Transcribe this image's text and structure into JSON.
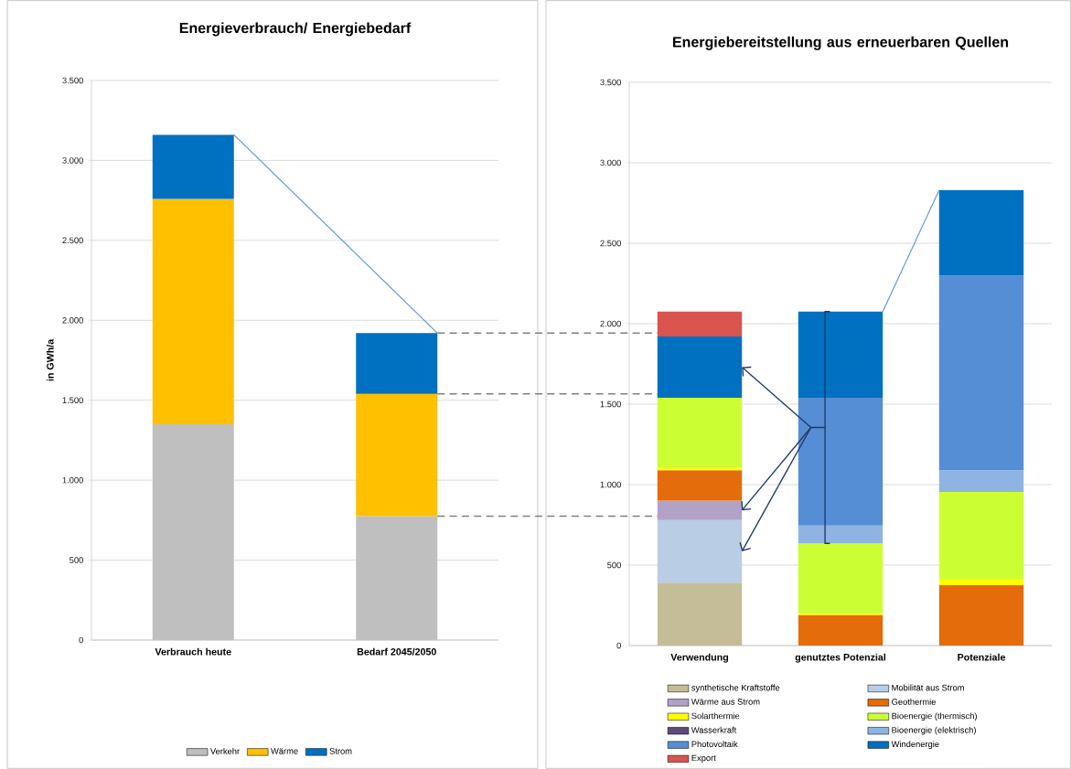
{
  "chart_data": [
    {
      "type": "bar",
      "stacked": true,
      "title": "Energieverbrauch/ Energiebedarf",
      "ylabel": "in GWh/a",
      "categories": [
        "Verbrauch heute",
        "Bedarf 2045/2050"
      ],
      "series": [
        {
          "name": "Verkehr",
          "color": "#bfbfbf",
          "values": [
            1350,
            775
          ]
        },
        {
          "name": "Wärme",
          "color": "#ffc000",
          "values": [
            1410,
            765
          ]
        },
        {
          "name": "Strom",
          "color": "#0070c0",
          "values": [
            400,
            380
          ]
        }
      ],
      "ylim": [
        0,
        3500
      ],
      "yticks": [
        0,
        500,
        {
          "value": 1000,
          "label": "1.000"
        },
        {
          "value": 1500,
          "label": "1.500"
        },
        {
          "value": 2000,
          "label": "2.000"
        },
        {
          "value": 2500,
          "label": "2.500"
        },
        {
          "value": 3000,
          "label": "3.000"
        },
        {
          "value": 3500,
          "label": "3.500"
        }
      ],
      "grid": "y",
      "legend": "bottom",
      "ref_lines": [
        {
          "axis": "y",
          "value": 1920,
          "color": "#808080",
          "line_style": "dashed"
        },
        {
          "axis": "y",
          "value": 1540,
          "color": "#808080",
          "line_style": "dashed"
        },
        {
          "axis": "y",
          "value": 775,
          "color": "#808080",
          "line_style": "dashed"
        }
      ]
    },
    {
      "type": "bar",
      "stacked": true,
      "title": "Energiebereitstellung aus erneuerbaren Quellen",
      "categories": [
        "Verwendung",
        "genutztes Potenzial",
        "Potenziale"
      ],
      "series": [
        {
          "name": "synthetische Kraftstoffe",
          "color": "#c4bd97",
          "values": [
            390,
            null,
            null
          ]
        },
        {
          "name": "Mobilität aus Strom",
          "color": "#b9cde5",
          "values": [
            390,
            null,
            null
          ]
        },
        {
          "name": "Wärme aus Strom",
          "color": "#b3a2c7",
          "values": [
            120,
            null,
            null
          ]
        },
        {
          "name": "Geothermie",
          "color": "#e46c0a",
          "values": [
            190,
            190,
            375
          ]
        },
        {
          "name": "Solarthermie",
          "color": "#ffff00",
          "values": [
            15,
            10,
            40
          ]
        },
        {
          "name": "Bioenergie (thermisch)",
          "color": "#ccff33",
          "values": [
            435,
            435,
            540
          ]
        },
        {
          "name": "Wasserkraft",
          "color": "#604a7b",
          "values": [
            null,
            null,
            null
          ]
        },
        {
          "name": "Bioenergie (elektrisch)",
          "color": "#8eb4e3",
          "values": [
            null,
            110,
            135
          ]
        },
        {
          "name": "Photovoltaik",
          "color": "#558ed5",
          "values": [
            null,
            795,
            1210
          ]
        },
        {
          "name": "Windenergie",
          "color": "#0070c0",
          "values": [
            380,
            535,
            530
          ]
        },
        {
          "name": "Export",
          "color": "#d9534f",
          "values": [
            155,
            null,
            null
          ]
        }
      ],
      "ylim": [
        0,
        3500
      ],
      "yticks": [
        0,
        500,
        {
          "value": 1000,
          "label": "1.000"
        },
        {
          "value": 1500,
          "label": "1.500"
        },
        {
          "value": 2000,
          "label": "2.000"
        },
        {
          "value": 2500,
          "label": "2.500"
        },
        {
          "value": 3000,
          "label": "3.000"
        },
        {
          "value": 3500,
          "label": "3.500"
        }
      ],
      "grid": "y",
      "legend": "bottom"
    }
  ]
}
